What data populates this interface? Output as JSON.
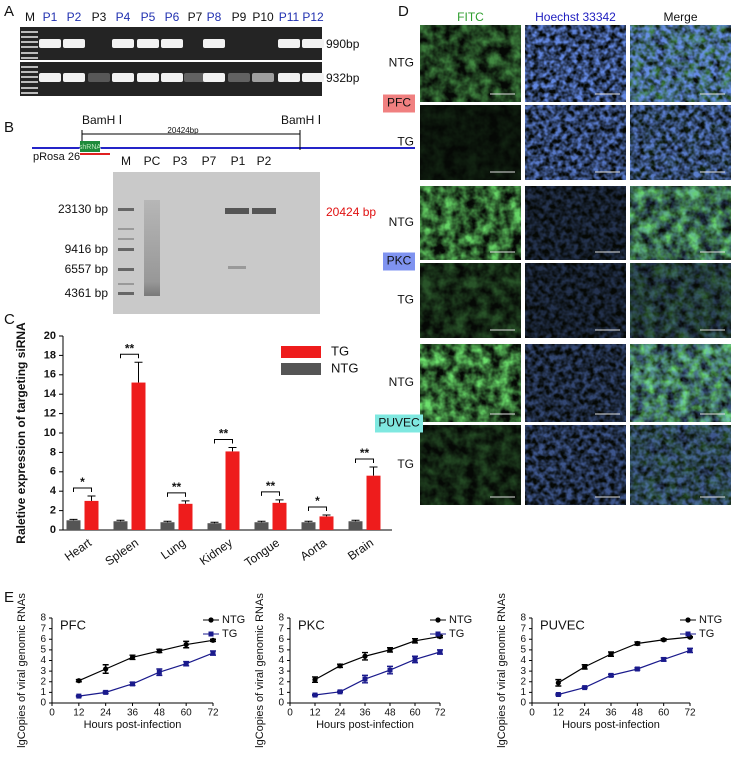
{
  "panels": {
    "A": {
      "letter": "A",
      "lanes": [
        {
          "label": "M",
          "color": "#111111"
        },
        {
          "label": "P1",
          "color": "#2030b0"
        },
        {
          "label": "P2",
          "color": "#2030b0"
        },
        {
          "label": "P3",
          "color": "#111111"
        },
        {
          "label": "P4",
          "color": "#2030b0"
        },
        {
          "label": "P5",
          "color": "#2030b0"
        },
        {
          "label": "P6",
          "color": "#2030b0"
        },
        {
          "label": "P7",
          "color": "#111111"
        },
        {
          "label": "P8",
          "color": "#2030b0"
        },
        {
          "label": "P9",
          "color": "#111111"
        },
        {
          "label": "P10",
          "color": "#111111"
        },
        {
          "label": "P11",
          "color": "#2030b0"
        },
        {
          "label": "P12",
          "color": "#2030b0"
        }
      ],
      "bands": [
        "990bp",
        "932bp"
      ]
    },
    "B": {
      "letter": "B",
      "site_left": "BamH Ⅰ",
      "site_right": "BamH Ⅰ",
      "length": "20424bp",
      "locus": "pRosa 26",
      "insert": "shRNA",
      "lanes": [
        "M",
        "PC",
        "P3",
        "P7",
        "P1",
        "P2"
      ],
      "markers": [
        "23130 bp",
        "9416 bp",
        "6557 bp",
        "4361 bp"
      ],
      "product": "20424 bp"
    },
    "C": {
      "letter": "C"
    },
    "D": {
      "letter": "D",
      "columns": [
        {
          "label": "FITC",
          "color": "#2e9e2e"
        },
        {
          "label": "Hoechst 33342",
          "color": "#2020c0"
        },
        {
          "label": "Merge",
          "color": "#111111"
        }
      ],
      "groups": [
        {
          "name": "PFC",
          "color": "#f08080",
          "rows": [
            "NTG",
            "TG"
          ]
        },
        {
          "name": "PKC",
          "color": "#7f93f0",
          "rows": [
            "NTG",
            "TG"
          ]
        },
        {
          "name": "PUVEC",
          "color": "#7fe8e0",
          "rows": [
            "NTG",
            "TG"
          ]
        }
      ]
    },
    "E": {
      "letter": "E"
    }
  },
  "chart_data": [
    {
      "type": "bar",
      "ylabel": "Raletive expression of targeting siRNA",
      "categories": [
        "Heart",
        "Spleen",
        "Lung",
        "Kidney",
        "Tongue",
        "Aorta",
        "Brain"
      ],
      "series": [
        {
          "name": "TG",
          "color": "#ee1c1c",
          "values": [
            3.0,
            15.2,
            2.7,
            8.1,
            2.8,
            1.4,
            5.6
          ],
          "errors": [
            0.5,
            2.1,
            0.3,
            0.4,
            0.3,
            0.15,
            0.9
          ]
        },
        {
          "name": "NTG",
          "color": "#555555",
          "values": [
            1.0,
            0.9,
            0.8,
            0.7,
            0.8,
            0.8,
            0.9
          ],
          "errors": [
            0.1,
            0.1,
            0.1,
            0.1,
            0.1,
            0.1,
            0.1
          ]
        }
      ],
      "annotations": [
        "*",
        "**",
        "**",
        "**",
        "**",
        "*",
        "**"
      ],
      "ylim": [
        0,
        20
      ],
      "yticks": [
        0,
        2,
        4,
        6,
        8,
        10,
        12,
        14,
        16,
        18,
        20
      ],
      "legend": "upper right"
    },
    {
      "type": "line",
      "title": "PFC",
      "xlabel": "Hours post-infection",
      "ylabel": "lgCopies of viral genomic RNAs",
      "x": [
        12,
        24,
        36,
        48,
        60,
        72
      ],
      "series": [
        {
          "name": "NTG",
          "color": "#000000",
          "marker": "circle",
          "values": [
            2.1,
            3.2,
            4.3,
            4.9,
            5.5,
            5.9
          ],
          "errors": [
            0.1,
            0.4,
            0.2,
            0.15,
            0.3,
            0.1
          ]
        },
        {
          "name": "TG",
          "color": "#1a1a8c",
          "marker": "square",
          "values": [
            0.65,
            1.0,
            1.8,
            2.9,
            3.7,
            4.7
          ],
          "errors": [
            0.05,
            0.1,
            0.15,
            0.3,
            0.2,
            0.2
          ]
        }
      ],
      "xlim": [
        0,
        72
      ],
      "xticks": [
        0,
        12,
        24,
        36,
        48,
        60,
        72
      ],
      "ylim": [
        0,
        8
      ],
      "yticks": [
        0,
        1,
        2,
        3,
        4,
        5,
        6,
        7,
        8
      ]
    },
    {
      "type": "line",
      "title": "PKC",
      "xlabel": "Hours post-infection",
      "ylabel": "lgCopies of viral genomic RNAs",
      "x": [
        12,
        24,
        36,
        48,
        60,
        72
      ],
      "series": [
        {
          "name": "NTG",
          "color": "#000000",
          "marker": "circle",
          "values": [
            2.2,
            3.5,
            4.4,
            5.0,
            5.85,
            6.25
          ],
          "errors": [
            0.25,
            0.15,
            0.35,
            0.2,
            0.2,
            0.1
          ]
        },
        {
          "name": "TG",
          "color": "#1a1a8c",
          "marker": "square",
          "values": [
            0.75,
            1.05,
            2.25,
            3.1,
            4.1,
            4.8
          ],
          "errors": [
            0.05,
            0.05,
            0.35,
            0.35,
            0.3,
            0.2
          ]
        }
      ],
      "xlim": [
        0,
        72
      ],
      "xticks": [
        0,
        12,
        24,
        36,
        48,
        60,
        72
      ],
      "ylim": [
        0,
        8
      ],
      "yticks": [
        0,
        1,
        2,
        3,
        4,
        5,
        6,
        7,
        8
      ]
    },
    {
      "type": "line",
      "title": "PUVEC",
      "xlabel": "Hours post-infection",
      "ylabel": "lgCopies of viral genomic RNAs",
      "x": [
        12,
        24,
        36,
        48,
        60,
        72
      ],
      "series": [
        {
          "name": "NTG",
          "color": "#000000",
          "marker": "circle",
          "values": [
            1.9,
            3.4,
            4.6,
            5.6,
            5.95,
            6.2
          ],
          "errors": [
            0.3,
            0.2,
            0.2,
            0.15,
            0.1,
            0.05
          ]
        },
        {
          "name": "TG",
          "color": "#1a1a8c",
          "marker": "square",
          "values": [
            0.8,
            1.45,
            2.6,
            3.2,
            4.1,
            4.95
          ],
          "errors": [
            0.05,
            0.05,
            0.1,
            0.1,
            0.15,
            0.2
          ]
        }
      ],
      "xlim": [
        0,
        72
      ],
      "xticks": [
        0,
        12,
        24,
        36,
        48,
        60,
        72
      ],
      "ylim": [
        0,
        8
      ],
      "yticks": [
        0,
        1,
        2,
        3,
        4,
        5,
        6,
        7,
        8
      ]
    }
  ]
}
